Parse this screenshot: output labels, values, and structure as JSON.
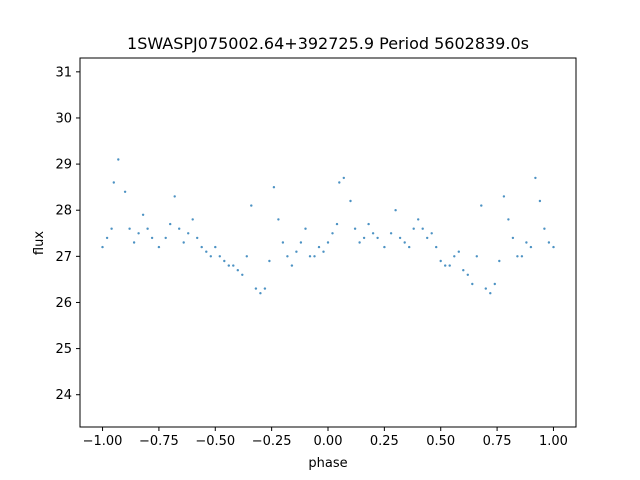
{
  "chart_data": {
    "type": "scatter",
    "title": "1SWASPJ075002.64+392725.9 Period 5602839.0s",
    "xlabel": "phase",
    "ylabel": "flux",
    "xlim": [
      -1.1,
      1.1
    ],
    "ylim": [
      23.3,
      31.3
    ],
    "xticks": [
      -1.0,
      -0.75,
      -0.5,
      -0.25,
      0.0,
      0.25,
      0.5,
      0.75,
      1.0
    ],
    "xtick_labels": [
      "−1.00",
      "−0.75",
      "−0.50",
      "−0.25",
      "0.00",
      "0.25",
      "0.50",
      "0.75",
      "1.00"
    ],
    "yticks": [
      24,
      25,
      26,
      27,
      28,
      29,
      30,
      31
    ],
    "ytick_labels": [
      "24",
      "25",
      "26",
      "27",
      "28",
      "29",
      "30",
      "31"
    ],
    "grid": false,
    "marker_color": "#1f77b4",
    "series": [
      {
        "x": [
          -1.0,
          -0.98,
          -0.96,
          -0.95,
          -0.93,
          -0.9,
          -0.88,
          -0.86,
          -0.84,
          -0.82,
          -0.8,
          -0.78,
          -0.75,
          -0.72,
          -0.7,
          -0.68,
          -0.66,
          -0.64,
          -0.62,
          -0.6,
          -0.58,
          -0.56,
          -0.54,
          -0.52,
          -0.5,
          -0.48,
          -0.46,
          -0.44,
          -0.42,
          -0.4,
          -0.38,
          -0.36,
          -0.34,
          -0.32,
          -0.3,
          -0.28,
          -0.26,
          -0.24,
          -0.22,
          -0.2,
          -0.18,
          -0.16,
          -0.14,
          -0.12,
          -0.1,
          -0.08,
          -0.06,
          -0.04,
          -0.02,
          0.0,
          0.02,
          0.04,
          0.05,
          0.07,
          0.1,
          0.12,
          0.14,
          0.16,
          0.18,
          0.2,
          0.22,
          0.25,
          0.28,
          0.3,
          0.32,
          0.34,
          0.36,
          0.38,
          0.4,
          0.42,
          0.44,
          0.46,
          0.48,
          0.5,
          0.52,
          0.54,
          0.56,
          0.58,
          0.6,
          0.62,
          0.64,
          0.66,
          0.68,
          0.7,
          0.72,
          0.74,
          0.76,
          0.78,
          0.8,
          0.82,
          0.84,
          0.86,
          0.88,
          0.9,
          0.92,
          0.94,
          0.96,
          0.98,
          1.0
        ],
        "y": [
          27.2,
          27.4,
          27.6,
          28.6,
          29.1,
          28.4,
          27.6,
          27.3,
          27.5,
          27.9,
          27.6,
          27.4,
          27.2,
          27.4,
          27.7,
          28.3,
          27.6,
          27.3,
          27.5,
          27.8,
          27.4,
          27.2,
          27.1,
          27.0,
          27.2,
          27.0,
          26.9,
          26.8,
          26.8,
          26.7,
          26.6,
          27.0,
          28.1,
          26.3,
          26.2,
          26.3,
          26.9,
          28.5,
          27.8,
          27.3,
          27.0,
          26.8,
          27.1,
          27.3,
          27.6,
          27.0,
          27.0,
          27.2,
          27.1,
          27.3,
          27.5,
          27.7,
          28.6,
          28.7,
          28.2,
          27.6,
          27.3,
          27.4,
          27.7,
          27.5,
          27.4,
          27.2,
          27.5,
          28.0,
          27.4,
          27.3,
          27.2,
          27.6,
          27.8,
          27.6,
          27.4,
          27.5,
          27.2,
          26.9,
          26.8,
          26.8,
          27.0,
          27.1,
          26.7,
          26.6,
          26.4,
          27.0,
          28.1,
          26.3,
          26.2,
          26.4,
          26.9,
          28.3,
          27.8,
          27.4,
          27.0,
          27.0,
          27.3,
          27.2,
          28.7,
          28.2,
          27.6,
          27.3,
          27.2
        ]
      }
    ]
  }
}
